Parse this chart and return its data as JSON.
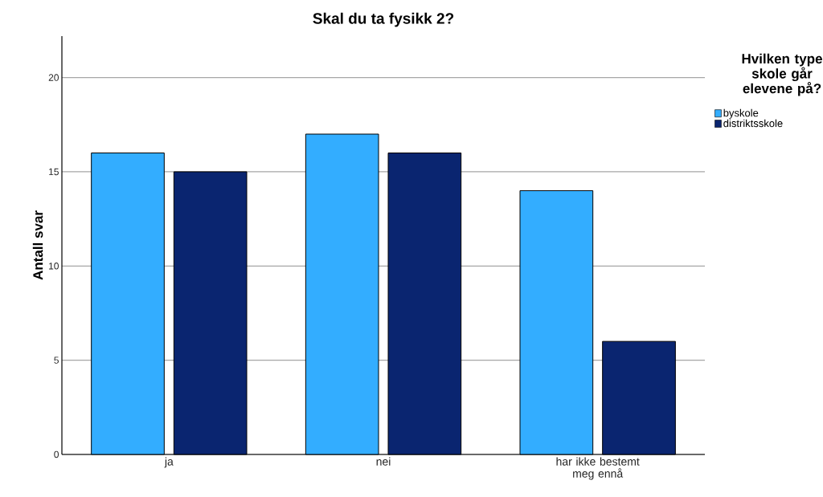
{
  "chart_data": {
    "type": "bar",
    "title": "Skal du ta fysikk 2?",
    "ylabel": "Antall svar",
    "legend_title": "Hvilken type skole går elevene på?",
    "categories": [
      "ja",
      "nei",
      "har ikke bestemt meg ennå"
    ],
    "series": [
      {
        "name": "byskole",
        "color": "#33adff",
        "values": [
          16,
          17,
          14
        ]
      },
      {
        "name": "distriktsskole",
        "color": "#0a2570",
        "values": [
          15,
          16,
          6
        ]
      }
    ],
    "ylim": [
      0,
      22.2
    ],
    "yticks": [
      0,
      5,
      10,
      15,
      20
    ],
    "grid": "y",
    "legend": "right"
  }
}
